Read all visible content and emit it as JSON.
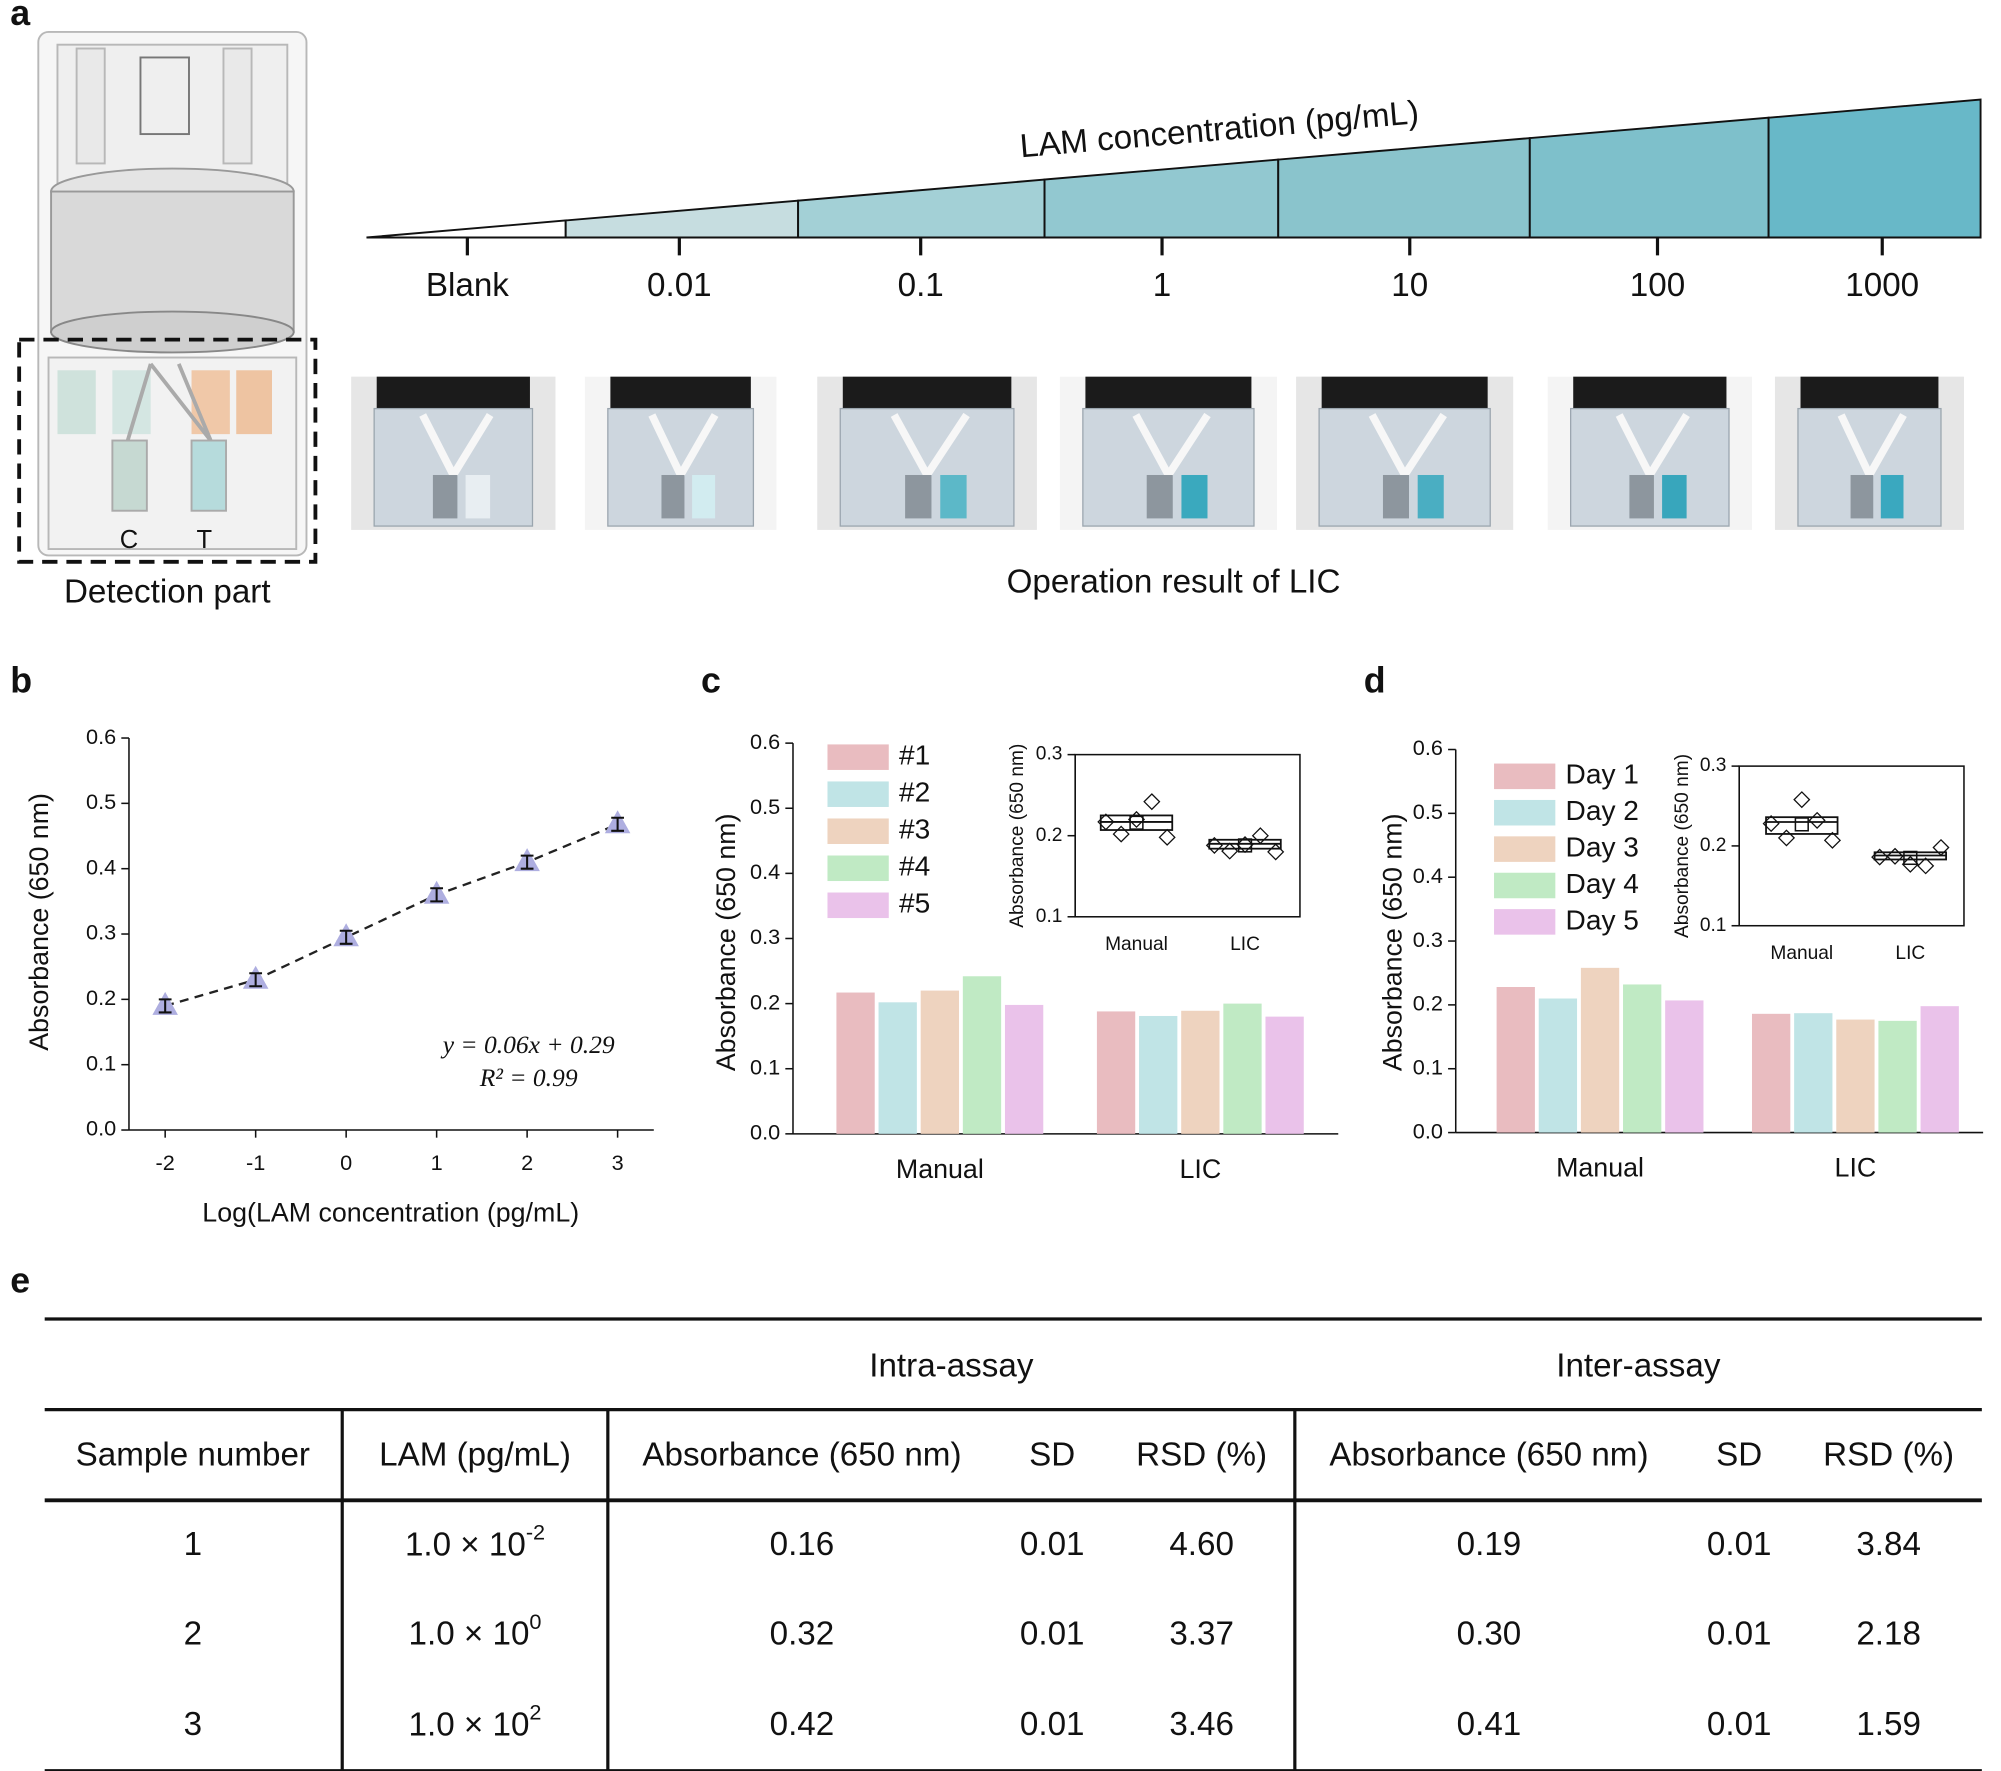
{
  "panel_labels": [
    "a",
    "b",
    "c",
    "d",
    "e"
  ],
  "panel_a": {
    "gradient_title": "LAM concentration (pg/mL)",
    "levels": [
      "Blank",
      "0.01",
      "0.1",
      "1",
      "10",
      "100",
      "1000"
    ],
    "photos_caption": "Operation result of LIC",
    "device_labels": [
      "C",
      "T"
    ],
    "device_caption": "Detection part"
  },
  "chart_data": [
    {
      "type": "line",
      "x_label": "Log(LAM concentration (pg/mL)",
      "y_label": "Absorbance (650 nm)",
      "x": [
        -2,
        -1,
        0,
        1,
        2,
        3
      ],
      "values": [
        0.19,
        0.23,
        0.295,
        0.36,
        0.41,
        0.468
      ],
      "errors": [
        0.01,
        0.01,
        0.01,
        0.01,
        0.01,
        0.01
      ],
      "color": "#aeaee0",
      "xlim": [
        -2.4,
        3.4
      ],
      "xticks": [
        -2,
        -1,
        0,
        1,
        2,
        3
      ],
      "ylim": [
        0,
        0.6
      ],
      "yticks": [
        {
          "value": 0,
          "label": "0.0"
        },
        0.1,
        0.2,
        0.3,
        0.4,
        0.5,
        0.6
      ],
      "annotations": [
        "y = 0.06x + 0.29",
        "R² = 0.99"
      ]
    },
    {
      "type": "bar",
      "y_label": "Absorbance (650 nm)",
      "categories": [
        "Manual",
        "LIC"
      ],
      "series": [
        {
          "name": "#1",
          "color": "#e9bcc0",
          "values": [
            0.217,
            0.188
          ]
        },
        {
          "name": "#2",
          "color": "#c0e4e6",
          "values": [
            0.202,
            0.181
          ]
        },
        {
          "name": "#3",
          "color": "#eed3bf",
          "values": [
            0.22,
            0.189
          ]
        },
        {
          "name": "#4",
          "color": "#c0eac4",
          "values": [
            0.242,
            0.2
          ]
        },
        {
          "name": "#5",
          "color": "#eac2ea",
          "values": [
            0.198,
            0.18
          ]
        }
      ],
      "ylim": [
        0,
        0.6
      ],
      "yticks": [
        {
          "value": 0,
          "label": "0.0"
        },
        0.1,
        0.2,
        0.3,
        0.4,
        0.5,
        0.6
      ],
      "inset": {
        "type": "box",
        "y_label": "Absorbance (650 nm)",
        "categories": [
          "Manual",
          "LIC"
        ],
        "q1": [
          0.207,
          0.184
        ],
        "median": [
          0.217,
          0.19
        ],
        "q3": [
          0.225,
          0.195
        ],
        "mean": [
          0.216,
          0.188
        ],
        "ylim": [
          0.1,
          0.3
        ],
        "yticks": [
          0.1,
          0.2,
          0.3
        ]
      }
    },
    {
      "type": "bar",
      "y_label": "Absorbance (650 nm)",
      "categories": [
        "Manual",
        "LIC"
      ],
      "series": [
        {
          "name": "Day 1",
          "color": "#e9bcc0",
          "values": [
            0.228,
            0.186
          ]
        },
        {
          "name": "Day 2",
          "color": "#c0e4e6",
          "values": [
            0.21,
            0.187
          ]
        },
        {
          "name": "Day 3",
          "color": "#eed3bf",
          "values": [
            0.258,
            0.177
          ]
        },
        {
          "name": "Day 4",
          "color": "#c0eac4",
          "values": [
            0.232,
            0.175
          ]
        },
        {
          "name": "Day 5",
          "color": "#eac2ea",
          "values": [
            0.207,
            0.198
          ]
        }
      ],
      "ylim": [
        0,
        0.6
      ],
      "yticks": [
        {
          "value": 0,
          "label": "0.0"
        },
        0.1,
        0.2,
        0.3,
        0.4,
        0.5,
        0.6
      ],
      "inset": {
        "type": "box",
        "y_label": "Absorbance (650 nm)",
        "categories": [
          "Manual",
          "LIC"
        ],
        "q1": [
          0.215,
          0.183
        ],
        "median": [
          0.23,
          0.188
        ],
        "q3": [
          0.236,
          0.192
        ],
        "mean": [
          0.227,
          0.185
        ],
        "ylim": [
          0.1,
          0.3
        ],
        "yticks": [
          0.1,
          0.2,
          0.3
        ]
      }
    }
  ],
  "table": {
    "group_headers": [
      "Intra-assay",
      "Inter-assay"
    ],
    "columns": [
      "Sample number",
      "LAM (pg/mL)",
      "Absorbance (650 nm)",
      "SD",
      "RSD (%)",
      "Absorbance (650 nm)",
      "SD",
      "RSD (%)"
    ],
    "rows": [
      [
        "1",
        {
          "base": "1.0 × 10",
          "exp": "-2"
        },
        "0.16",
        "0.01",
        "4.60",
        "0.19",
        "0.01",
        "3.84"
      ],
      [
        "2",
        {
          "base": "1.0 × 10",
          "exp": "0"
        },
        "0.32",
        "0.01",
        "3.37",
        "0.30",
        "0.01",
        "2.18"
      ],
      [
        "3",
        {
          "base": "1.0 × 10",
          "exp": "2"
        },
        "0.42",
        "0.01",
        "3.46",
        "0.41",
        "0.01",
        "1.59"
      ]
    ]
  }
}
